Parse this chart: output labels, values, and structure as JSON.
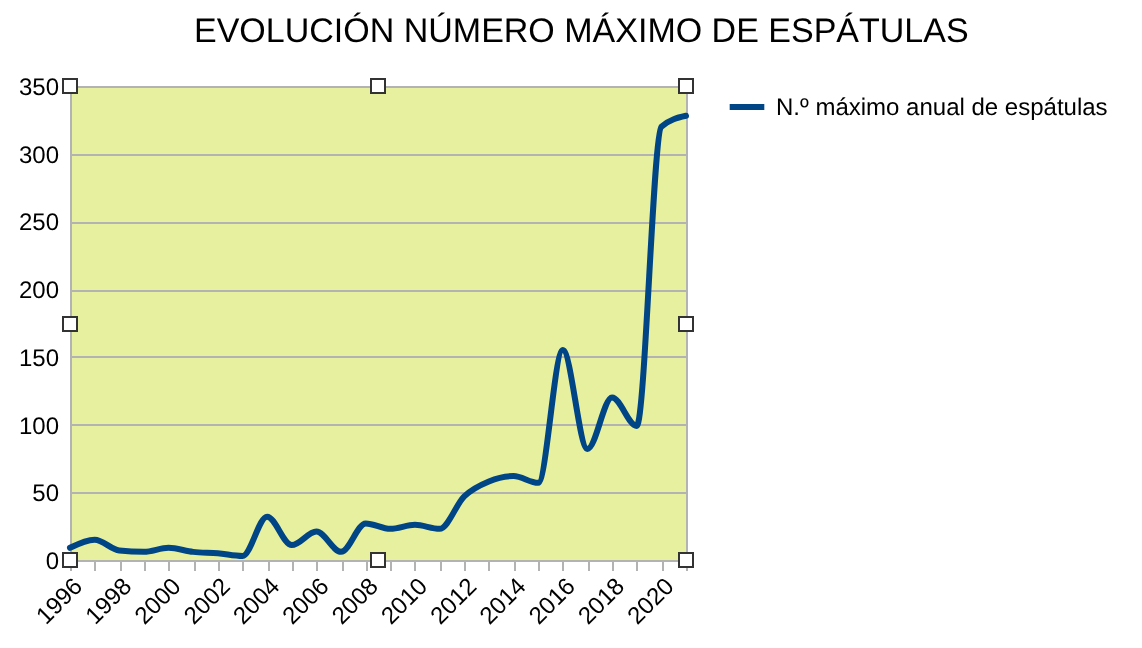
{
  "chart_data": {
    "type": "line",
    "title": "EVOLUCIÓN NÚMERO MÁXIMO DE ESPÁTULAS",
    "x": [
      1996,
      1997,
      1998,
      1999,
      2000,
      2001,
      2002,
      2003,
      2004,
      2005,
      2006,
      2007,
      2008,
      2009,
      2010,
      2011,
      2012,
      2013,
      2014,
      2015,
      2016,
      2017,
      2018,
      2019,
      2020,
      2021
    ],
    "series": [
      {
        "name": "N.º máximo anual de espátulas",
        "color": "#004586",
        "values": [
          9,
          15,
          7,
          6,
          9,
          6,
          5,
          3,
          32,
          11,
          21,
          6,
          27,
          23,
          26,
          23,
          47,
          58,
          62,
          57,
          155,
          82,
          120,
          99,
          320,
          328
        ]
      }
    ],
    "xlim": [
      1996,
      2021
    ],
    "xticks": [
      1996,
      {
        "value": 1997,
        "label": null
      },
      1998,
      {
        "value": 1999,
        "label": null
      },
      2000,
      {
        "value": 2001,
        "label": null
      },
      2002,
      {
        "value": 2003,
        "label": null
      },
      2004,
      {
        "value": 2005,
        "label": null
      },
      2006,
      {
        "value": 2007,
        "label": null
      },
      2008,
      {
        "value": 2009,
        "label": null
      },
      2010,
      {
        "value": 2011,
        "label": null
      },
      2012,
      {
        "value": 2013,
        "label": null
      },
      2014,
      {
        "value": 2015,
        "label": null
      },
      2016,
      {
        "value": 2017,
        "label": null
      },
      2018,
      {
        "value": 2019,
        "label": null
      },
      2020,
      {
        "value": 2021,
        "label": null
      }
    ],
    "ylim": [
      0,
      350
    ],
    "yticks": [
      0,
      50,
      100,
      150,
      200,
      250,
      300,
      350
    ],
    "grid": "y",
    "legend": "right",
    "line_style": "solid",
    "marker": "none"
  }
}
